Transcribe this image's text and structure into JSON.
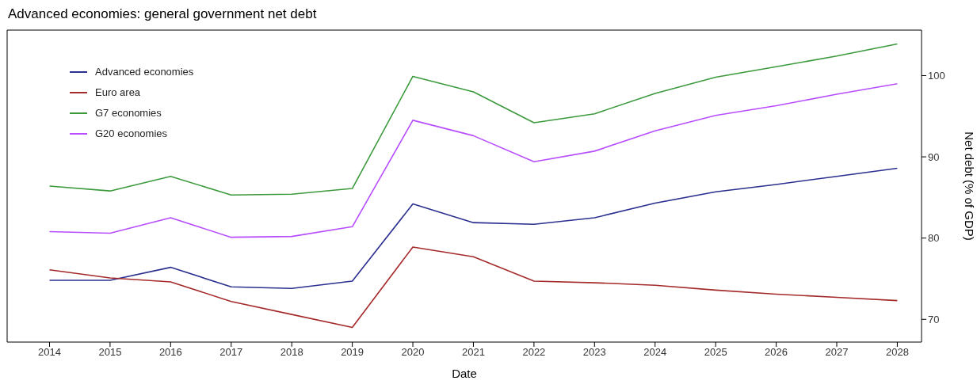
{
  "chart_data": {
    "type": "line",
    "title": "Advanced economies: general government net debt",
    "xlabel": "Date",
    "ylabel": "Net debt (% of GDP)",
    "x": [
      2014,
      2015,
      2016,
      2017,
      2018,
      2019,
      2020,
      2021,
      2022,
      2023,
      2024,
      2025,
      2026,
      2027,
      2028
    ],
    "xlim": [
      2013.3,
      2028.4
    ],
    "xticks": [
      2014,
      2015,
      2016,
      2017,
      2018,
      2019,
      2020,
      2021,
      2022,
      2023,
      2024,
      2025,
      2026,
      2027,
      2028
    ],
    "ylim": [
      67.2,
      105.6
    ],
    "yticks": [
      70,
      80,
      90,
      100
    ],
    "grid": false,
    "legend": "top left",
    "marker": "none",
    "line_style": "solid",
    "series": [
      {
        "name": "Advanced economies",
        "color": "#2b2f8f",
        "values": [
          74.8,
          74.8,
          76.4,
          74.0,
          73.8,
          74.7,
          84.2,
          81.9,
          81.7,
          82.5,
          84.3,
          85.7,
          86.6,
          87.6,
          88.6
        ]
      },
      {
        "name": "Euro area",
        "color": "#a52a2a",
        "values": [
          76.1,
          75.1,
          74.6,
          72.2,
          70.6,
          69.0,
          78.9,
          77.7,
          74.7,
          74.5,
          74.2,
          73.6,
          73.1,
          72.7,
          72.3
        ]
      },
      {
        "name": "G7 economies",
        "color": "#3c9a3c",
        "values": [
          86.4,
          85.8,
          87.6,
          85.3,
          85.4,
          86.1,
          99.9,
          98.0,
          94.2,
          95.3,
          97.8,
          99.8,
          101.1,
          102.4,
          103.9
        ]
      },
      {
        "name": "G20 economies",
        "color": "#b84dff",
        "values": [
          80.8,
          80.6,
          82.5,
          80.1,
          80.2,
          81.4,
          94.5,
          92.6,
          89.4,
          90.7,
          93.2,
          95.1,
          96.3,
          97.7,
          99.0
        ]
      }
    ]
  }
}
